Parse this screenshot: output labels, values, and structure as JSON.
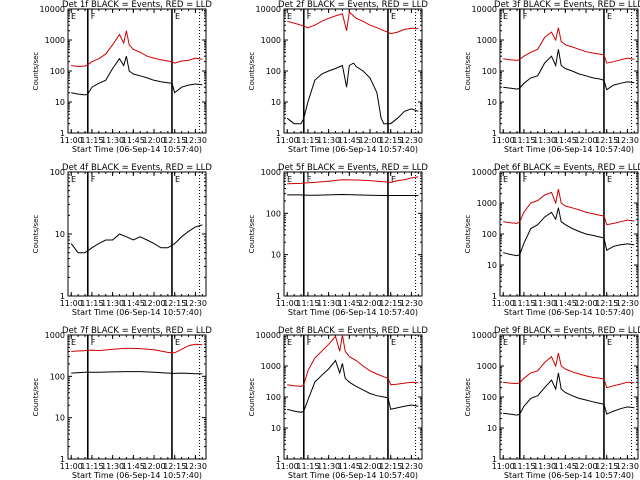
{
  "figure": {
    "grid": false,
    "xaxis_label": "Start Time (06-Sep-14 10:57:40)",
    "yaxis_label": "Counts/sec",
    "x_tick_labels": [
      "11:00",
      "11:15",
      "11:30",
      "11:45",
      "12:00",
      "12:15",
      "12:30"
    ],
    "y_tick_labels": [
      "1",
      "10",
      "100",
      "1000",
      "10000"
    ],
    "region_labels": [
      "E",
      "F",
      "E"
    ],
    "colors": {
      "events": "#000000",
      "lld": "#cc0000"
    }
  },
  "chart_data": [
    {
      "type": "line",
      "title": "Det 1f BLACK = Events, RED = LLD",
      "xlabel": "Start Time (06-Sep-14 10:57:40)",
      "ylabel": "Counts/sec",
      "xlim": [
        "10:57:40",
        "12:37:40"
      ],
      "ylim": [
        1,
        10000
      ],
      "yscale": "log",
      "markers_x": [
        "11:12",
        "12:13",
        "12:33"
      ],
      "x": [
        "11:00",
        "11:05",
        "11:10",
        "11:12",
        "11:15",
        "11:20",
        "11:25",
        "11:30",
        "11:35",
        "11:38",
        "11:40",
        "11:42",
        "11:45",
        "11:50",
        "11:55",
        "12:00",
        "12:05",
        "12:10",
        "12:13",
        "12:15",
        "12:20",
        "12:25",
        "12:30",
        "12:35"
      ],
      "series": [
        {
          "name": "Events",
          "color": "#000000",
          "values": [
            20,
            18,
            17,
            18,
            30,
            40,
            50,
            120,
            250,
            150,
            300,
            100,
            80,
            70,
            60,
            50,
            45,
            42,
            40,
            20,
            30,
            35,
            38,
            36
          ]
        },
        {
          "name": "LLD",
          "color": "#cc0000",
          "values": [
            150,
            140,
            145,
            160,
            200,
            250,
            350,
            700,
            1500,
            800,
            2000,
            700,
            500,
            400,
            300,
            260,
            230,
            210,
            200,
            180,
            210,
            220,
            260,
            240
          ]
        }
      ]
    },
    {
      "type": "line",
      "title": "Det 2f BLACK = Events, RED = LLD",
      "xlabel": "Start Time (06-Sep-14 10:57:40)",
      "ylabel": "Counts/sec",
      "xlim": [
        "10:57:40",
        "12:37:40"
      ],
      "ylim": [
        1,
        10000
      ],
      "yscale": "log",
      "markers_x": [
        "11:12",
        "12:13",
        "12:33"
      ],
      "x": [
        "11:00",
        "11:05",
        "11:10",
        "11:12",
        "11:15",
        "11:20",
        "11:25",
        "11:30",
        "11:35",
        "11:40",
        "11:43",
        "11:45",
        "11:48",
        "11:50",
        "11:55",
        "12:00",
        "12:05",
        "12:08",
        "12:10",
        "12:13",
        "12:15",
        "12:20",
        "12:25",
        "12:30",
        "12:35"
      ],
      "series": [
        {
          "name": "Events",
          "color": "#000000",
          "values": [
            3,
            2,
            2,
            3,
            10,
            50,
            80,
            100,
            120,
            150,
            30,
            150,
            180,
            140,
            100,
            60,
            20,
            3,
            2,
            2,
            2,
            3,
            5,
            6,
            5
          ]
        },
        {
          "name": "LLD",
          "color": "#cc0000",
          "values": [
            4000,
            3500,
            3000,
            2800,
            2500,
            3000,
            4000,
            5000,
            6000,
            7000,
            2000,
            8000,
            6000,
            5000,
            4000,
            3000,
            2500,
            2200,
            2000,
            1800,
            1600,
            1800,
            2200,
            2400,
            2300
          ]
        }
      ]
    },
    {
      "type": "line",
      "title": "Det 3f BLACK = Events, RED = LLD",
      "xlabel": "Start Time (06-Sep-14 10:57:40)",
      "ylabel": "Counts/sec",
      "xlim": [
        "10:57:40",
        "12:37:40"
      ],
      "ylim": [
        1,
        10000
      ],
      "yscale": "log",
      "markers_x": [
        "11:12",
        "12:13",
        "12:33"
      ],
      "x": [
        "11:00",
        "11:05",
        "11:10",
        "11:12",
        "11:15",
        "11:20",
        "11:25",
        "11:30",
        "11:35",
        "11:38",
        "11:40",
        "11:42",
        "11:45",
        "11:50",
        "11:55",
        "12:00",
        "12:05",
        "12:10",
        "12:13",
        "12:15",
        "12:20",
        "12:25",
        "12:30",
        "12:35"
      ],
      "series": [
        {
          "name": "Events",
          "color": "#000000",
          "values": [
            30,
            28,
            26,
            28,
            40,
            60,
            70,
            180,
            300,
            150,
            500,
            150,
            120,
            100,
            80,
            70,
            60,
            55,
            50,
            25,
            35,
            40,
            45,
            42
          ]
        },
        {
          "name": "LLD",
          "color": "#cc0000",
          "values": [
            250,
            230,
            220,
            240,
            300,
            400,
            500,
            1200,
            1800,
            1000,
            2500,
            900,
            700,
            600,
            500,
            420,
            380,
            350,
            330,
            180,
            200,
            230,
            260,
            240
          ]
        }
      ]
    },
    {
      "type": "line",
      "title": "Det 4f BLACK = Events, RED = LLD",
      "xlabel": "Start Time (06-Sep-14 10:57:40)",
      "ylabel": "Counts/sec",
      "xlim": [
        "10:57:40",
        "12:37:40"
      ],
      "ylim": [
        1,
        100
      ],
      "yscale": "log",
      "markers_x": [
        "11:12",
        "12:13",
        "12:33"
      ],
      "x": [
        "11:00",
        "11:05",
        "11:10",
        "11:15",
        "11:20",
        "11:25",
        "11:30",
        "11:35",
        "11:40",
        "11:45",
        "11:50",
        "11:55",
        "12:00",
        "12:05",
        "12:10",
        "12:15",
        "12:20",
        "12:25",
        "12:30",
        "12:35"
      ],
      "series": [
        {
          "name": "Events",
          "color": "#000000",
          "values": [
            7,
            5,
            5,
            6,
            7,
            8,
            8,
            10,
            9,
            8,
            9,
            8,
            7,
            6,
            6,
            7,
            9,
            11,
            13,
            14
          ]
        }
      ]
    },
    {
      "type": "line",
      "title": "Det 5f BLACK = Events, RED = LLD",
      "xlabel": "Start Time (06-Sep-14 10:57:40)",
      "ylabel": "Counts/sec",
      "xlim": [
        "10:57:40",
        "12:37:40"
      ],
      "ylim": [
        1,
        1000
      ],
      "yscale": "log",
      "markers_x": [
        "11:12",
        "12:13",
        "12:33"
      ],
      "x": [
        "11:00",
        "11:10",
        "11:15",
        "11:20",
        "11:30",
        "11:40",
        "11:50",
        "12:00",
        "12:10",
        "12:15",
        "12:20",
        "12:25",
        "12:30",
        "12:35"
      ],
      "series": [
        {
          "name": "Events",
          "color": "#000000",
          "values": [
            280,
            280,
            275,
            275,
            280,
            285,
            280,
            275,
            270,
            270,
            270,
            270,
            270,
            270
          ]
        },
        {
          "name": "LLD",
          "color": "#cc0000",
          "values": [
            520,
            530,
            550,
            560,
            600,
            650,
            640,
            620,
            580,
            560,
            620,
            650,
            720,
            760
          ]
        }
      ]
    },
    {
      "type": "line",
      "title": "Det 6f BLACK = Events, RED = LLD",
      "xlabel": "Start Time (06-Sep-14 10:57:40)",
      "ylabel": "Counts/sec",
      "xlim": [
        "10:57:40",
        "12:37:40"
      ],
      "ylim": [
        1,
        10000
      ],
      "yscale": "log",
      "markers_x": [
        "11:12",
        "12:13",
        "12:33"
      ],
      "x": [
        "11:00",
        "11:05",
        "11:10",
        "11:12",
        "11:15",
        "11:20",
        "11:25",
        "11:30",
        "11:35",
        "11:38",
        "11:40",
        "11:42",
        "11:45",
        "11:50",
        "11:55",
        "12:00",
        "12:05",
        "12:10",
        "12:13",
        "12:15",
        "12:20",
        "12:25",
        "12:30",
        "12:35"
      ],
      "series": [
        {
          "name": "Events",
          "color": "#000000",
          "values": [
            25,
            22,
            20,
            22,
            50,
            150,
            200,
            350,
            500,
            300,
            700,
            250,
            200,
            150,
            120,
            100,
            90,
            80,
            75,
            30,
            40,
            45,
            48,
            45
          ]
        },
        {
          "name": "LLD",
          "color": "#cc0000",
          "values": [
            250,
            230,
            220,
            250,
            500,
            1000,
            1200,
            1800,
            2200,
            1000,
            2800,
            1000,
            800,
            700,
            600,
            500,
            450,
            400,
            380,
            200,
            220,
            250,
            280,
            260
          ]
        }
      ]
    },
    {
      "type": "line",
      "title": "Det 7f BLACK = Events, RED = LLD",
      "xlabel": "Start Time (06-Sep-14 10:57:40)",
      "ylabel": "Counts/sec",
      "xlim": [
        "10:57:40",
        "12:37:40"
      ],
      "ylim": [
        1,
        1000
      ],
      "yscale": "log",
      "markers_x": [
        "11:12",
        "12:13",
        "12:33"
      ],
      "x": [
        "11:00",
        "11:10",
        "11:15",
        "11:20",
        "11:30",
        "11:40",
        "11:50",
        "12:00",
        "12:10",
        "12:15",
        "12:20",
        "12:25",
        "12:30",
        "12:35"
      ],
      "series": [
        {
          "name": "Events",
          "color": "#000000",
          "values": [
            120,
            125,
            125,
            125,
            128,
            130,
            130,
            125,
            120,
            118,
            120,
            118,
            115,
            115
          ]
        },
        {
          "name": "LLD",
          "color": "#cc0000",
          "values": [
            400,
            420,
            430,
            420,
            450,
            480,
            470,
            440,
            380,
            370,
            450,
            550,
            600,
            580
          ]
        }
      ]
    },
    {
      "type": "line",
      "title": "Det 8f BLACK = Events, RED = LLD",
      "xlabel": "Start Time (06-Sep-14 10:57:40)",
      "ylabel": "Counts/sec",
      "xlim": [
        "10:57:40",
        "12:37:40"
      ],
      "ylim": [
        1,
        10000
      ],
      "yscale": "log",
      "markers_x": [
        "11:12",
        "12:13",
        "12:33"
      ],
      "x": [
        "11:00",
        "11:05",
        "11:10",
        "11:12",
        "11:15",
        "11:20",
        "11:25",
        "11:30",
        "11:35",
        "11:38",
        "11:40",
        "11:42",
        "11:45",
        "11:50",
        "11:55",
        "12:00",
        "12:05",
        "12:10",
        "12:13",
        "12:15",
        "12:20",
        "12:25",
        "12:30",
        "12:35"
      ],
      "series": [
        {
          "name": "Events",
          "color": "#000000",
          "values": [
            40,
            35,
            32,
            35,
            80,
            300,
            500,
            800,
            1500,
            600,
            1200,
            400,
            300,
            220,
            170,
            130,
            110,
            100,
            95,
            40,
            45,
            50,
            55,
            50
          ]
        },
        {
          "name": "LLD",
          "color": "#cc0000",
          "values": [
            250,
            230,
            220,
            250,
            700,
            1800,
            3000,
            5000,
            9000,
            3000,
            10000,
            3000,
            2000,
            1500,
            1000,
            700,
            550,
            450,
            400,
            250,
            260,
            280,
            300,
            290
          ]
        }
      ]
    },
    {
      "type": "line",
      "title": "Det 9f BLACK = Events, RED = LLD",
      "xlabel": "Start Time (06-Sep-14 10:57:40)",
      "ylabel": "Counts/sec",
      "xlim": [
        "10:57:40",
        "12:37:40"
      ],
      "ylim": [
        1,
        10000
      ],
      "yscale": "log",
      "markers_x": [
        "11:12",
        "12:13",
        "12:33"
      ],
      "x": [
        "11:00",
        "11:05",
        "11:10",
        "11:12",
        "11:15",
        "11:20",
        "11:25",
        "11:30",
        "11:35",
        "11:38",
        "11:40",
        "11:42",
        "11:45",
        "11:50",
        "11:55",
        "12:00",
        "12:05",
        "12:10",
        "12:13",
        "12:15",
        "12:20",
        "12:25",
        "12:30",
        "12:35"
      ],
      "series": [
        {
          "name": "Events",
          "color": "#000000",
          "values": [
            30,
            28,
            26,
            28,
            50,
            90,
            110,
            200,
            350,
            180,
            600,
            180,
            140,
            110,
            90,
            80,
            70,
            62,
            58,
            28,
            35,
            42,
            48,
            45
          ]
        },
        {
          "name": "LLD",
          "color": "#cc0000",
          "values": [
            300,
            280,
            270,
            290,
            400,
            600,
            700,
            1300,
            2000,
            1000,
            2600,
            1000,
            800,
            650,
            550,
            480,
            430,
            400,
            380,
            200,
            230,
            260,
            300,
            290
          ]
        }
      ]
    }
  ]
}
